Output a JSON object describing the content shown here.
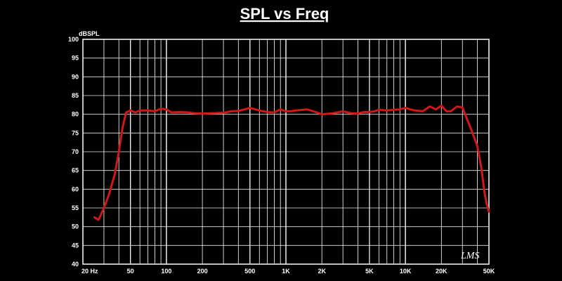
{
  "chart_data": {
    "type": "line",
    "title": "SPL vs Freq",
    "ylabel": "dBSPL",
    "xlabel": "",
    "xscale": "log",
    "xlim": [
      20,
      50000
    ],
    "ylim": [
      40,
      100
    ],
    "grid": true,
    "y_ticks": [
      "40",
      "45",
      "50",
      "55",
      "60",
      "65",
      "70",
      "75",
      "80",
      "85",
      "90",
      "95",
      "100"
    ],
    "x_ticks": [
      {
        "value": 20,
        "label": "20  Hz"
      },
      {
        "value": 50,
        "label": "50"
      },
      {
        "value": 100,
        "label": "100"
      },
      {
        "value": 200,
        "label": "200"
      },
      {
        "value": 500,
        "label": "500"
      },
      {
        "value": 1000,
        "label": "1K"
      },
      {
        "value": 2000,
        "label": "2K"
      },
      {
        "value": 5000,
        "label": "5K"
      },
      {
        "value": 10000,
        "label": "10K"
      },
      {
        "value": 20000,
        "label": "20K"
      },
      {
        "value": 50000,
        "label": "50K"
      }
    ],
    "series": [
      {
        "color": "#d01818",
        "x": [
          25,
          27,
          30,
          33,
          37,
          40,
          43,
          46,
          50,
          55,
          60,
          70,
          80,
          90,
          100,
          110,
          130,
          150,
          170,
          200,
          250,
          300,
          350,
          400,
          450,
          500,
          600,
          700,
          800,
          900,
          1000,
          1100,
          1200,
          1500,
          1700,
          2000,
          2500,
          3000,
          3500,
          4000,
          4500,
          5000,
          5500,
          6000,
          7000,
          8000,
          9000,
          10000,
          11000,
          12000,
          14000,
          16000,
          18000,
          20000,
          22000,
          24000,
          27000,
          30000,
          33000,
          36000,
          40000,
          43000,
          46000,
          48000,
          50000
        ],
        "y": [
          52.5,
          51.8,
          55,
          58.5,
          64,
          70,
          76.5,
          80.5,
          81,
          80.5,
          81,
          81,
          80.8,
          81.5,
          81.3,
          80.5,
          80.6,
          80.5,
          80.3,
          80.2,
          80.3,
          80.4,
          80.8,
          80.9,
          81.3,
          81.7,
          81.0,
          80.6,
          80.5,
          81.3,
          80.8,
          80.8,
          81.0,
          81.3,
          80.8,
          80.0,
          80.3,
          80.8,
          80.3,
          80.2,
          80.6,
          80.6,
          80.8,
          81.2,
          81.0,
          81.2,
          81.3,
          81.7,
          81.3,
          81.0,
          80.8,
          82.1,
          81.3,
          82.3,
          80.8,
          80.8,
          82.1,
          81.8,
          78.5,
          75.5,
          71.5,
          66,
          59,
          56,
          54
        ]
      }
    ],
    "annotations": [
      "LMS"
    ]
  }
}
